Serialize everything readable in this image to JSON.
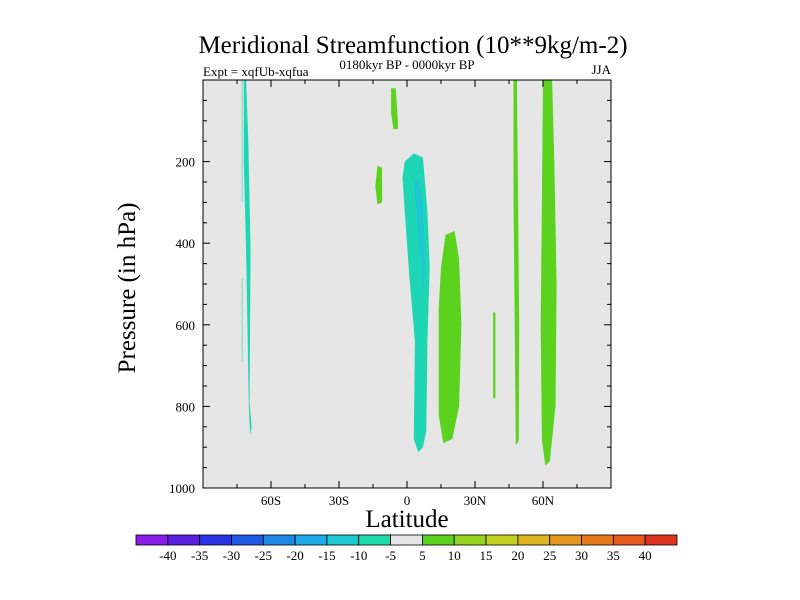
{
  "chart_data": {
    "type": "contour",
    "title": "Meridional Streamfunction (10**9kg/m-2)",
    "subtitle_left": "Expt = xqfUb-xqfua",
    "subtitle_center": "0180kyr BP - 0000kyr BP",
    "subtitle_right": "JJA",
    "xlabel": "Latitude",
    "ylabel": "Pressure (in hPa)",
    "xlim": [
      -90,
      90
    ],
    "ylim": [
      0,
      1000
    ],
    "y_inverted": true,
    "x_ticks": [
      {
        "value": -60,
        "label": "60S"
      },
      {
        "value": -30,
        "label": "30S"
      },
      {
        "value": 0,
        "label": "0"
      },
      {
        "value": 30,
        "label": "30N"
      },
      {
        "value": 60,
        "label": "60N"
      }
    ],
    "y_ticks": [
      {
        "value": 200,
        "label": "200"
      },
      {
        "value": 400,
        "label": "400"
      },
      {
        "value": 600,
        "label": "600"
      },
      {
        "value": 800,
        "label": "800"
      },
      {
        "value": 1000,
        "label": "1000"
      }
    ],
    "background_color": "#e6e6e6",
    "contour_levels": [
      "-40",
      "-35",
      "-30",
      "-25",
      "-20",
      "-15",
      "-10",
      "-5",
      "5",
      "10",
      "15",
      "20",
      "25",
      "30",
      "35",
      "40"
    ],
    "colorbar_colors": [
      "#8a1ee8",
      "#5a1ee0",
      "#2a32e6",
      "#1e5ae6",
      "#1e86e6",
      "#1eaae6",
      "#1ec8d2",
      "#1edcaa",
      "#e6e6e6",
      "#5ad21e",
      "#96d21e",
      "#c3d21e",
      "#dcb41e",
      "#e6961e",
      "#e6781e",
      "#e65a1e",
      "#dc321e"
    ],
    "regions": [
      {
        "label": "negative -10 to -5",
        "color": "#1ed6b4",
        "points": [
          [
            -72,
            0
          ],
          [
            -71,
            0
          ],
          [
            -70,
            150
          ],
          [
            -69,
            420
          ],
          [
            -69.5,
            790
          ],
          [
            -68.5,
            850
          ],
          [
            -69.2,
            870
          ],
          [
            -69.8,
            800
          ],
          [
            -71,
            420
          ],
          [
            -72,
            200
          ]
        ]
      },
      {
        "label": "negative -10 to -5",
        "color": "#1ed6b4",
        "points": [
          [
            -72.9,
            0
          ],
          [
            -72.6,
            0
          ],
          [
            -72.6,
            300
          ],
          [
            -72.9,
            300
          ]
        ]
      },
      {
        "label": "negative -10 to -5",
        "color": "#1ed6b4",
        "points": [
          [
            -72.9,
            485
          ],
          [
            -72.6,
            485
          ],
          [
            -72.6,
            690
          ],
          [
            -72.9,
            690
          ]
        ]
      },
      {
        "label": "negative -10 to -5",
        "color": "#1ed6b4",
        "points": [
          [
            -1,
            200
          ],
          [
            3,
            180
          ],
          [
            7,
            190
          ],
          [
            9,
            320
          ],
          [
            10,
            460
          ],
          [
            9,
            640
          ],
          [
            8.5,
            860
          ],
          [
            7,
            900
          ],
          [
            5,
            912
          ],
          [
            3,
            880
          ],
          [
            3.5,
            640
          ],
          [
            1,
            480
          ],
          [
            -1,
            320
          ],
          [
            -2,
            240
          ]
        ]
      },
      {
        "label": "negative -10 to -5",
        "color": "#1ec8d2",
        "points": [
          [
            3,
            250
          ],
          [
            5,
            240
          ],
          [
            7,
            300
          ],
          [
            8,
            450
          ],
          [
            7,
            520
          ],
          [
            5,
            380
          ]
        ]
      },
      {
        "label": "positive 5 to 10",
        "color": "#5ad21e",
        "points": [
          [
            -7,
            20
          ],
          [
            -5,
            20
          ],
          [
            -4,
            100
          ],
          [
            -4,
            120
          ],
          [
            -6,
            120
          ],
          [
            -7,
            80
          ]
        ]
      },
      {
        "label": "positive 5 to 10",
        "color": "#5ad21e",
        "points": [
          [
            -13,
            210
          ],
          [
            -11,
            215
          ],
          [
            -11,
            300
          ],
          [
            -13,
            305
          ],
          [
            -14,
            260
          ]
        ]
      },
      {
        "label": "positive 5 to 10",
        "color": "#5ad21e",
        "points": [
          [
            17,
            380
          ],
          [
            21,
            370
          ],
          [
            23,
            440
          ],
          [
            24,
            600
          ],
          [
            23,
            800
          ],
          [
            20,
            880
          ],
          [
            16,
            890
          ],
          [
            14,
            820
          ],
          [
            14,
            560
          ],
          [
            15,
            460
          ]
        ]
      },
      {
        "label": "positive 5 to 10",
        "color": "#5ad21e",
        "points": [
          [
            38,
            570
          ],
          [
            39,
            570
          ],
          [
            39,
            780
          ],
          [
            38,
            780
          ]
        ]
      },
      {
        "label": "positive 5 to 10",
        "color": "#5ad21e",
        "points": [
          [
            47,
            0
          ],
          [
            48.5,
            0
          ],
          [
            49,
            300
          ],
          [
            49.5,
            600
          ],
          [
            49.3,
            885
          ],
          [
            48,
            895
          ],
          [
            47.5,
            600
          ],
          [
            47,
            300
          ]
        ]
      },
      {
        "label": "positive 5 to 10",
        "color": "#5ad21e",
        "points": [
          [
            60,
            0
          ],
          [
            64,
            0
          ],
          [
            65,
            200
          ],
          [
            66,
            500
          ],
          [
            65.5,
            800
          ],
          [
            63,
            935
          ],
          [
            61,
            945
          ],
          [
            59.5,
            880
          ],
          [
            59,
            600
          ],
          [
            59.5,
            300
          ]
        ]
      }
    ]
  }
}
